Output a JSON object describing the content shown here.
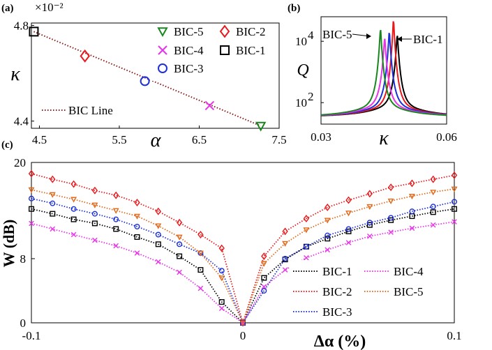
{
  "figure": {
    "panel_labels": [
      "(a)",
      "(b)",
      "(c)"
    ]
  },
  "colors": {
    "BIC-1": "#000000",
    "BIC-2": "#e8191c",
    "BIC-3": "#1c2fd8",
    "BIC-4": "#e833e8",
    "BIC-5": "#18861e",
    "line5c": "#e06a1c",
    "bicline": "#8b1a1a"
  },
  "chart_data": [
    {
      "panel": "(a)",
      "type": "scatter",
      "xlabel": "α",
      "ylabel": "κ",
      "exponent": "×10⁻²",
      "xlim": [
        4.4,
        7.5
      ],
      "ylim": [
        4.37,
        4.81
      ],
      "xticks": [
        "4.5",
        "5.5",
        "6.5",
        "7.5"
      ],
      "xtick_values": [
        4.5,
        5.5,
        6.5,
        7.5
      ],
      "yticks": [
        "4.4",
        "4.8"
      ],
      "ytick_values": [
        4.4,
        4.8
      ],
      "series": [
        {
          "name": "BIC-1",
          "marker": "square",
          "x": 4.43,
          "y": 4.774
        },
        {
          "name": "BIC-2",
          "marker": "diamond",
          "x": 5.07,
          "y": 4.672
        },
        {
          "name": "BIC-3",
          "marker": "circle",
          "x": 5.82,
          "y": 4.567
        },
        {
          "name": "BIC-4",
          "marker": "x",
          "x": 6.63,
          "y": 4.465
        },
        {
          "name": "BIC-5",
          "marker": "triangle-down",
          "x": 7.27,
          "y": 4.38
        }
      ],
      "line": {
        "name": "BIC Line",
        "x": [
          4.43,
          7.27
        ],
        "y": [
          4.774,
          4.38
        ]
      },
      "legend": [
        "BIC-5",
        "BIC-2",
        "BIC-4",
        "BIC-1",
        "BIC-3"
      ],
      "legend_line": "BIC Line"
    },
    {
      "panel": "(b)",
      "type": "line",
      "xlabel": "κ",
      "ylabel": "Q",
      "xlim": [
        0.03,
        0.06
      ],
      "yscale": "log",
      "ylim_log10": [
        1.3,
        4.8
      ],
      "xticks": [
        "0.03",
        "0.06"
      ],
      "yticks": [
        "10",
        "10"
      ],
      "ytick_exponents": [
        "2",
        "4"
      ],
      "ytick_log10": [
        2,
        4
      ],
      "series": [
        {
          "name": "BIC-5",
          "peak_x": 0.0442,
          "peak_log10": 4.5
        },
        {
          "name": "BIC-4",
          "peak_x": 0.0452,
          "peak_log10": 4.2
        },
        {
          "name": "BIC-3",
          "peak_x": 0.0463,
          "peak_log10": 4.4
        },
        {
          "name": "BIC-2",
          "peak_x": 0.0473,
          "peak_log10": 4.8
        },
        {
          "name": "BIC-1",
          "peak_x": 0.0482,
          "peak_log10": 4.3
        }
      ],
      "annotations": [
        {
          "text": "BIC-5",
          "arrow_to": "BIC-5"
        },
        {
          "text": "BIC-1",
          "arrow_to": "BIC-1"
        }
      ]
    },
    {
      "panel": "(c)",
      "type": "line",
      "xlabel": "Δα (%)",
      "ylabel": "W (dB)",
      "xlim": [
        -0.1,
        0.1
      ],
      "ylim": [
        0,
        20
      ],
      "xticks": [
        "-0.1",
        "0",
        "0.1"
      ],
      "xtick_values": [
        -0.1,
        0,
        0.1
      ],
      "yticks": [
        "0",
        "8",
        "20"
      ],
      "ytick_values": [
        0,
        8,
        20
      ],
      "x": [
        -0.1,
        -0.09,
        -0.08,
        -0.07,
        -0.06,
        -0.05,
        -0.04,
        -0.03,
        -0.02,
        -0.01,
        0,
        0.01,
        0.02,
        0.03,
        0.04,
        0.05,
        0.06,
        0.07,
        0.08,
        0.09,
        0.1
      ],
      "series": [
        {
          "name": "BIC-1",
          "marker": "square",
          "values": [
            14.2,
            13.6,
            12.9,
            12.4,
            11.7,
            10.7,
            9.8,
            8.3,
            6.6,
            2.6,
            0,
            5.6,
            7.9,
            9.5,
            10.5,
            11.4,
            12.2,
            12.8,
            13.3,
            13.8,
            14.2
          ]
        },
        {
          "name": "BIC-2",
          "marker": "diamond",
          "values": [
            18.6,
            17.9,
            17.3,
            16.5,
            15.9,
            15.0,
            13.9,
            12.5,
            11.0,
            9.3,
            0,
            8.3,
            11.4,
            13.0,
            14.4,
            15.3,
            16.1,
            16.9,
            17.4,
            17.9,
            18.4
          ]
        },
        {
          "name": "BIC-3",
          "marker": "circle",
          "values": [
            15.5,
            14.9,
            14.2,
            13.6,
            12.9,
            12.0,
            11.0,
            9.8,
            8.7,
            6.5,
            0,
            4.0,
            8.0,
            9.5,
            10.9,
            11.7,
            12.5,
            13.1,
            13.9,
            14.5,
            15.1
          ]
        },
        {
          "name": "BIC-4",
          "marker": "x",
          "values": [
            12.4,
            11.7,
            11.0,
            10.3,
            9.6,
            8.7,
            7.6,
            6.3,
            4.3,
            1.8,
            0,
            4.5,
            6.6,
            8.1,
            9.1,
            10.0,
            10.8,
            11.3,
            11.8,
            12.2,
            12.6
          ]
        },
        {
          "name": "BIC-5",
          "marker": "triangle-down",
          "values": [
            16.6,
            16.0,
            15.4,
            14.7,
            14.0,
            13.3,
            12.1,
            10.7,
            8.7,
            5.6,
            0,
            7.4,
            9.9,
            11.6,
            12.8,
            13.7,
            14.5,
            15.2,
            15.8,
            16.3,
            16.7
          ]
        }
      ],
      "legend": [
        "BIC-1",
        "BIC-4",
        "BIC-2",
        "BIC-5",
        "BIC-3"
      ]
    }
  ]
}
